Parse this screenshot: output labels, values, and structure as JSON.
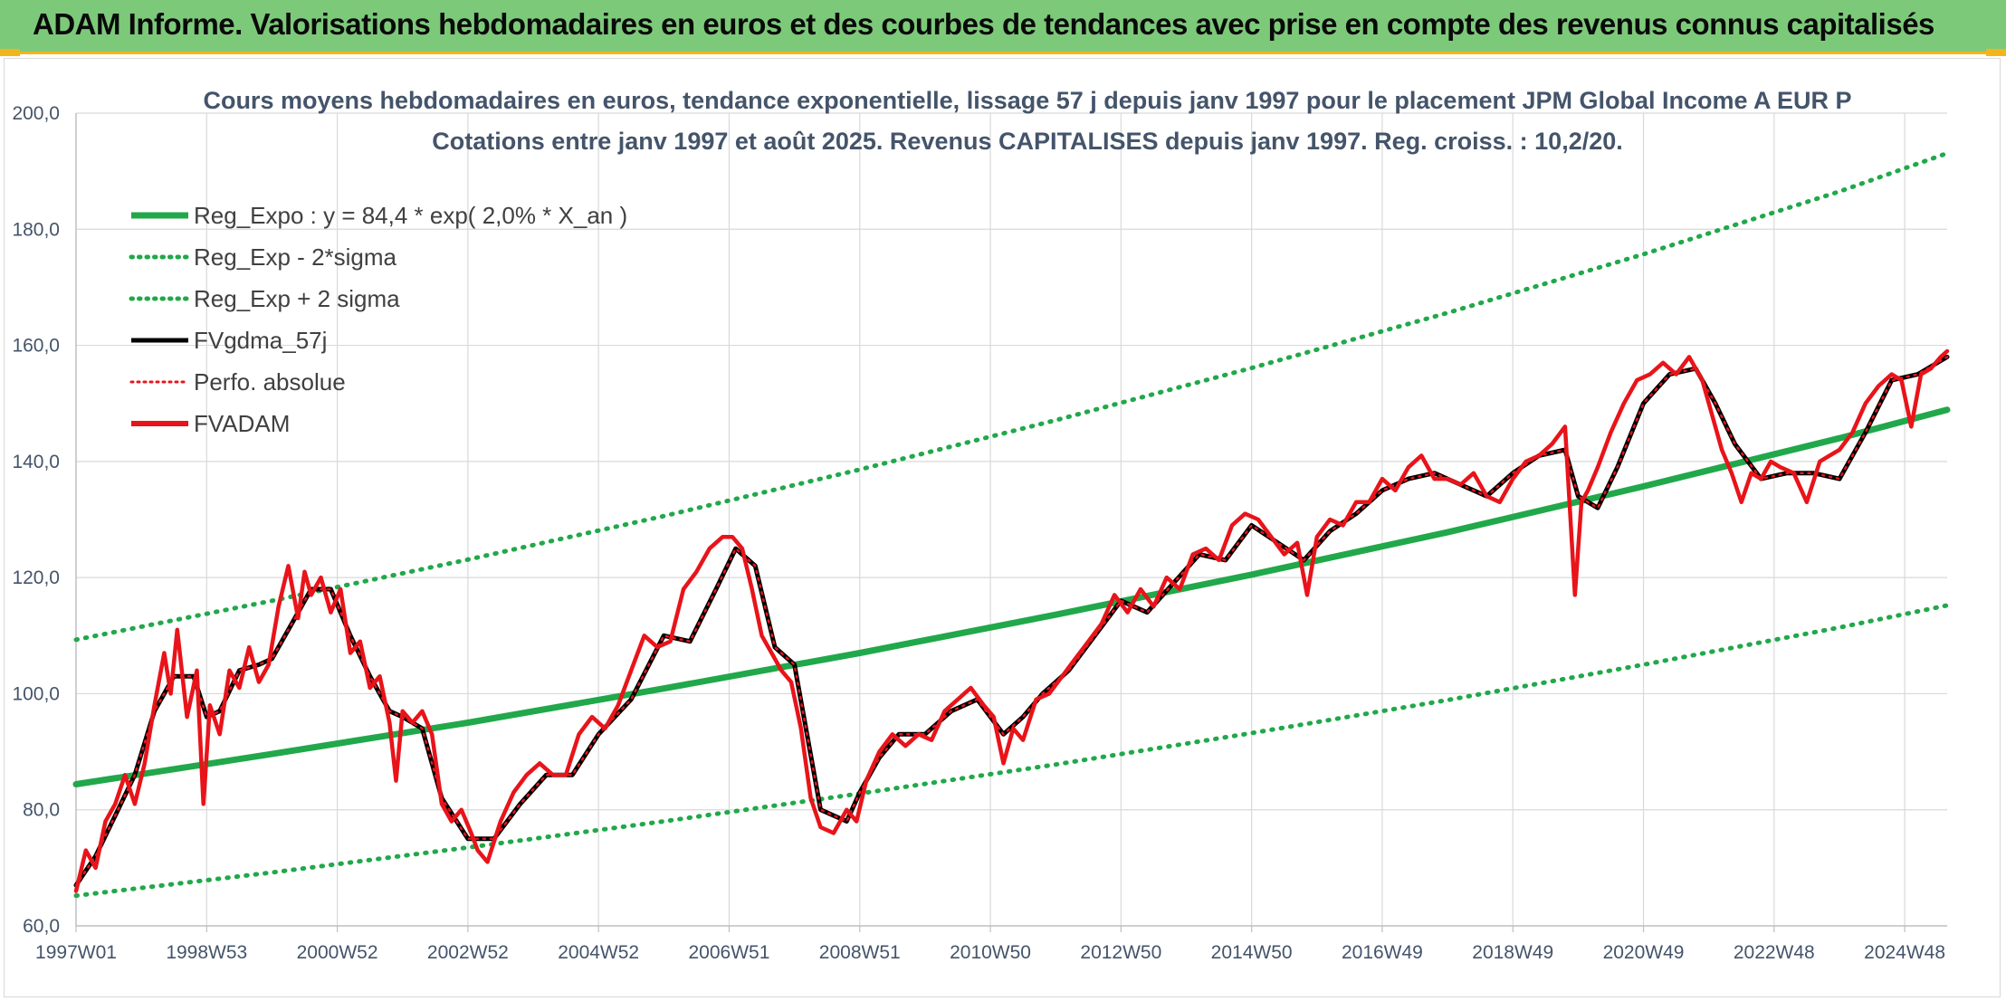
{
  "header": {
    "title": "ADAM Informe. Valorisations hebdomadaires en euros et des courbes de tendances avec prise en compte des revenus connus capitalisés"
  },
  "chart_data": {
    "type": "line",
    "title": "Cours moyens hebdomadaires en euros, tendance exponentielle, lissage 57 j depuis janv 1997 pour le placement JPM Global Income A EUR P",
    "subtitle": "Cotations entre janv 1997 et août 2025. Revenus CAPITALISES depuis janv 1997. Reg. croiss. : 10,2/20.",
    "xlabel": "",
    "ylabel": "",
    "x_range": [
      1997.0,
      2025.65
    ],
    "ylim": [
      60,
      200
    ],
    "y_ticks": [
      "60,0",
      "80,0",
      "100,0",
      "120,0",
      "140,0",
      "160,0",
      "180,0",
      "200,0"
    ],
    "y_tick_values": [
      60,
      80,
      100,
      120,
      140,
      160,
      180,
      200
    ],
    "x_ticks": [
      "1997W01",
      "1998W53",
      "2000W52",
      "2002W52",
      "2004W52",
      "2006W51",
      "2008W51",
      "2010W50",
      "2012W50",
      "2014W50",
      "2016W49",
      "2018W49",
      "2020W49",
      "2022W48",
      "2024W48"
    ],
    "x_tick_values": [
      1997.0,
      1999.0,
      2001.0,
      2003.0,
      2005.0,
      2007.0,
      2009.0,
      2011.0,
      2013.0,
      2015.0,
      2017.0,
      2019.0,
      2021.0,
      2023.0,
      2025.0
    ],
    "grid": true,
    "legend_position": "top-left",
    "series": [
      {
        "name": "Reg_Expo : y = 84,4 * exp( 2,0% *  X_an )",
        "color": "#21a84a",
        "style": "solid",
        "x": [
          1997.0,
          2000.0,
          2003.0,
          2006.0,
          2009.0,
          2012.0,
          2015.0,
          2018.0,
          2021.0,
          2024.0,
          2025.65
        ],
        "values": [
          84.4,
          89.6,
          95.0,
          100.9,
          107.0,
          113.6,
          120.5,
          127.8,
          135.7,
          144.0,
          148.9
        ]
      },
      {
        "name": "Reg_Exp - 2*sigma",
        "color": "#21a84a",
        "style": "dotted",
        "x": [
          1997.0,
          2000.0,
          2003.0,
          2006.0,
          2009.0,
          2012.0,
          2015.0,
          2018.0,
          2021.0,
          2024.0,
          2025.65
        ],
        "values": [
          65.2,
          69.2,
          73.5,
          78.0,
          82.8,
          87.8,
          93.2,
          98.9,
          105.0,
          111.4,
          115.2
        ]
      },
      {
        "name": "Reg_Exp + 2 sigma",
        "color": "#21a84a",
        "style": "dotted",
        "x": [
          1997.0,
          2000.0,
          2003.0,
          2006.0,
          2009.0,
          2012.0,
          2015.0,
          2018.0,
          2021.0,
          2024.0,
          2025.65
        ],
        "values": [
          109.3,
          116.0,
          123.1,
          130.6,
          138.6,
          147.1,
          156.1,
          165.6,
          175.7,
          186.5,
          193.1
        ]
      },
      {
        "name": "FVgdma_57j",
        "color": "#000000",
        "style": "solid",
        "x": [
          1997.0,
          1997.3,
          1997.6,
          1997.9,
          1998.2,
          1998.5,
          1998.8,
          1999.0,
          1999.2,
          1999.5,
          1999.8,
          2000.0,
          2000.3,
          2000.6,
          2000.9,
          2001.2,
          2001.5,
          2001.8,
          2002.0,
          2002.3,
          2002.6,
          2003.0,
          2003.4,
          2003.8,
          2004.2,
          2004.6,
          2005.0,
          2005.5,
          2006.0,
          2006.4,
          2006.8,
          2007.1,
          2007.4,
          2007.7,
          2008.0,
          2008.4,
          2008.8,
          2009.0,
          2009.3,
          2009.6,
          2010.0,
          2010.4,
          2010.8,
          2011.2,
          2011.5,
          2011.8,
          2012.2,
          2012.6,
          2013.0,
          2013.4,
          2013.8,
          2014.2,
          2014.6,
          2015.0,
          2015.4,
          2015.8,
          2016.2,
          2016.6,
          2017.0,
          2017.4,
          2017.8,
          2018.2,
          2018.6,
          2019.0,
          2019.4,
          2019.8,
          2020.0,
          2020.3,
          2020.6,
          2021.0,
          2021.4,
          2021.8,
          2022.1,
          2022.4,
          2022.8,
          2023.2,
          2023.6,
          2024.0,
          2024.4,
          2024.8,
          2025.2,
          2025.65
        ],
        "values": [
          67.0,
          72.0,
          79.0,
          86.0,
          97.0,
          103.0,
          103.0,
          96.0,
          97.0,
          104.0,
          105.0,
          106.0,
          112.0,
          118.0,
          118.0,
          110.0,
          103.0,
          97.0,
          96.0,
          94.0,
          82.0,
          75.0,
          75.0,
          81.0,
          86.0,
          86.0,
          93.0,
          99.0,
          110.0,
          109.0,
          118.0,
          125.0,
          122.0,
          108.0,
          105.0,
          80.0,
          78.0,
          83.0,
          89.0,
          93.0,
          93.0,
          97.0,
          99.0,
          93.0,
          96.0,
          100.0,
          104.0,
          110.0,
          116.0,
          114.0,
          119.0,
          124.0,
          123.0,
          129.0,
          126.0,
          123.0,
          128.0,
          131.0,
          135.0,
          137.0,
          138.0,
          136.0,
          134.0,
          138.0,
          141.0,
          142.0,
          134.0,
          132.0,
          139.0,
          150.0,
          155.0,
          156.0,
          150.0,
          143.0,
          137.0,
          138.0,
          138.0,
          137.0,
          145.0,
          154.0,
          155.0,
          158.0
        ]
      },
      {
        "name": "Perfo. absolue",
        "color": "#e8141a",
        "style": "dotted",
        "x": [
          1997.0,
          1997.3,
          1997.6,
          1997.9,
          1998.2,
          1998.5,
          1998.8,
          1999.0,
          1999.2,
          1999.5,
          1999.8,
          2000.0,
          2000.3,
          2000.6,
          2000.9,
          2001.2,
          2001.5,
          2001.8,
          2002.0,
          2002.3,
          2002.6,
          2003.0,
          2003.4,
          2003.8,
          2004.2,
          2004.6,
          2005.0,
          2005.5,
          2006.0,
          2006.4,
          2006.8,
          2007.1,
          2007.4,
          2007.7,
          2008.0,
          2008.4,
          2008.8,
          2009.0,
          2009.3,
          2009.6,
          2010.0,
          2010.4,
          2010.8,
          2011.2,
          2011.5,
          2011.8,
          2012.2,
          2012.6,
          2013.0,
          2013.4,
          2013.8,
          2014.2,
          2014.6,
          2015.0,
          2015.4,
          2015.8,
          2016.2,
          2016.6,
          2017.0,
          2017.4,
          2017.8,
          2018.2,
          2018.6,
          2019.0,
          2019.4,
          2019.8,
          2020.0,
          2020.3,
          2020.6,
          2021.0,
          2021.4,
          2021.8,
          2022.1,
          2022.4,
          2022.8,
          2023.2,
          2023.6,
          2024.0,
          2024.4,
          2024.8,
          2025.2,
          2025.65
        ],
        "values": [
          67.0,
          72.0,
          79.0,
          86.0,
          97.0,
          103.0,
          103.0,
          96.0,
          97.0,
          104.0,
          105.0,
          106.0,
          112.0,
          118.0,
          118.0,
          110.0,
          103.0,
          97.0,
          96.0,
          94.0,
          82.0,
          75.0,
          75.0,
          81.0,
          86.0,
          86.0,
          93.0,
          99.0,
          110.0,
          109.0,
          118.0,
          125.0,
          122.0,
          108.0,
          105.0,
          80.0,
          78.0,
          83.0,
          89.0,
          93.0,
          93.0,
          97.0,
          99.0,
          93.0,
          96.0,
          100.0,
          104.0,
          110.0,
          116.0,
          114.0,
          119.0,
          124.0,
          123.0,
          129.0,
          126.0,
          123.0,
          128.0,
          131.0,
          135.0,
          137.0,
          138.0,
          136.0,
          134.0,
          138.0,
          141.0,
          142.0,
          134.0,
          132.0,
          139.0,
          150.0,
          155.0,
          156.0,
          150.0,
          143.0,
          137.0,
          138.0,
          138.0,
          137.0,
          145.0,
          154.0,
          155.0,
          158.0
        ]
      },
      {
        "name": "FVADAM",
        "color": "#e8141a",
        "style": "solid",
        "x": [
          1997.0,
          1997.15,
          1997.3,
          1997.45,
          1997.6,
          1997.75,
          1997.9,
          1998.05,
          1998.2,
          1998.35,
          1998.45,
          1998.55,
          1998.7,
          1998.85,
          1998.95,
          1999.05,
          1999.2,
          1999.35,
          1999.5,
          1999.65,
          1999.8,
          1999.95,
          2000.1,
          2000.25,
          2000.4,
          2000.5,
          2000.6,
          2000.75,
          2000.9,
          2001.05,
          2001.2,
          2001.35,
          2001.5,
          2001.65,
          2001.8,
          2001.9,
          2002.0,
          2002.15,
          2002.3,
          2002.45,
          2002.6,
          2002.75,
          2002.9,
          2003.05,
          2003.15,
          2003.3,
          2003.5,
          2003.7,
          2003.9,
          2004.1,
          2004.3,
          2004.5,
          2004.7,
          2004.9,
          2005.1,
          2005.3,
          2005.5,
          2005.7,
          2005.9,
          2006.1,
          2006.3,
          2006.5,
          2006.7,
          2006.9,
          2007.05,
          2007.2,
          2007.35,
          2007.5,
          2007.65,
          2007.8,
          2007.95,
          2008.1,
          2008.25,
          2008.4,
          2008.6,
          2008.8,
          2008.95,
          2009.1,
          2009.3,
          2009.5,
          2009.7,
          2009.9,
          2010.1,
          2010.3,
          2010.5,
          2010.7,
          2010.9,
          2011.05,
          2011.2,
          2011.35,
          2011.5,
          2011.7,
          2011.9,
          2012.1,
          2012.3,
          2012.5,
          2012.7,
          2012.9,
          2013.1,
          2013.3,
          2013.5,
          2013.7,
          2013.9,
          2014.1,
          2014.3,
          2014.5,
          2014.7,
          2014.9,
          2015.1,
          2015.3,
          2015.5,
          2015.7,
          2015.85,
          2016.0,
          2016.2,
          2016.4,
          2016.6,
          2016.8,
          2017.0,
          2017.2,
          2017.4,
          2017.6,
          2017.8,
          2018.0,
          2018.2,
          2018.4,
          2018.6,
          2018.8,
          2019.0,
          2019.2,
          2019.4,
          2019.6,
          2019.8,
          2019.95,
          2020.05,
          2020.15,
          2020.3,
          2020.5,
          2020.7,
          2020.9,
          2021.1,
          2021.3,
          2021.5,
          2021.7,
          2021.9,
          2022.05,
          2022.2,
          2022.35,
          2022.5,
          2022.65,
          2022.8,
          2022.95,
          2023.1,
          2023.3,
          2023.5,
          2023.7,
          2023.85,
          2024.0,
          2024.2,
          2024.4,
          2024.6,
          2024.8,
          2024.95,
          2025.1,
          2025.25,
          2025.4,
          2025.55,
          2025.65
        ],
        "values": [
          66.0,
          73.0,
          70.0,
          78.0,
          81.0,
          86.0,
          81.0,
          88.0,
          98.0,
          107.0,
          100.0,
          111.0,
          96.0,
          104.0,
          81.0,
          98.0,
          93.0,
          104.0,
          101.0,
          108.0,
          102.0,
          105.0,
          115.0,
          122.0,
          113.0,
          121.0,
          117.0,
          120.0,
          114.0,
          118.0,
          107.0,
          109.0,
          101.0,
          103.0,
          95.0,
          85.0,
          97.0,
          95.0,
          97.0,
          93.0,
          81.0,
          78.0,
          80.0,
          76.0,
          73.0,
          71.0,
          78.0,
          83.0,
          86.0,
          88.0,
          86.0,
          86.0,
          93.0,
          96.0,
          94.0,
          98.0,
          104.0,
          110.0,
          108.0,
          109.0,
          118.0,
          121.0,
          125.0,
          127.0,
          127.0,
          125.0,
          118.0,
          110.0,
          107.0,
          104.0,
          102.0,
          94.0,
          82.0,
          77.0,
          76.0,
          80.0,
          78.0,
          85.0,
          90.0,
          93.0,
          91.0,
          93.0,
          92.0,
          97.0,
          99.0,
          101.0,
          98.0,
          96.0,
          88.0,
          94.0,
          92.0,
          99.0,
          100.0,
          103.0,
          106.0,
          109.0,
          112.0,
          117.0,
          114.0,
          118.0,
          115.0,
          120.0,
          118.0,
          124.0,
          125.0,
          123.0,
          129.0,
          131.0,
          130.0,
          127.0,
          124.0,
          126.0,
          117.0,
          127.0,
          130.0,
          129.0,
          133.0,
          133.0,
          137.0,
          135.0,
          139.0,
          141.0,
          137.0,
          137.0,
          136.0,
          138.0,
          134.0,
          133.0,
          137.0,
          140.0,
          141.0,
          143.0,
          146.0,
          117.0,
          133.0,
          135.0,
          139.0,
          145.0,
          150.0,
          154.0,
          155.0,
          157.0,
          155.0,
          158.0,
          154.0,
          148.0,
          142.0,
          138.0,
          133.0,
          138.0,
          137.0,
          140.0,
          139.0,
          138.0,
          133.0,
          140.0,
          141.0,
          142.0,
          145.0,
          150.0,
          153.0,
          155.0,
          154.0,
          146.0,
          155.0,
          156.0,
          158.0,
          159.0
        ]
      }
    ]
  }
}
